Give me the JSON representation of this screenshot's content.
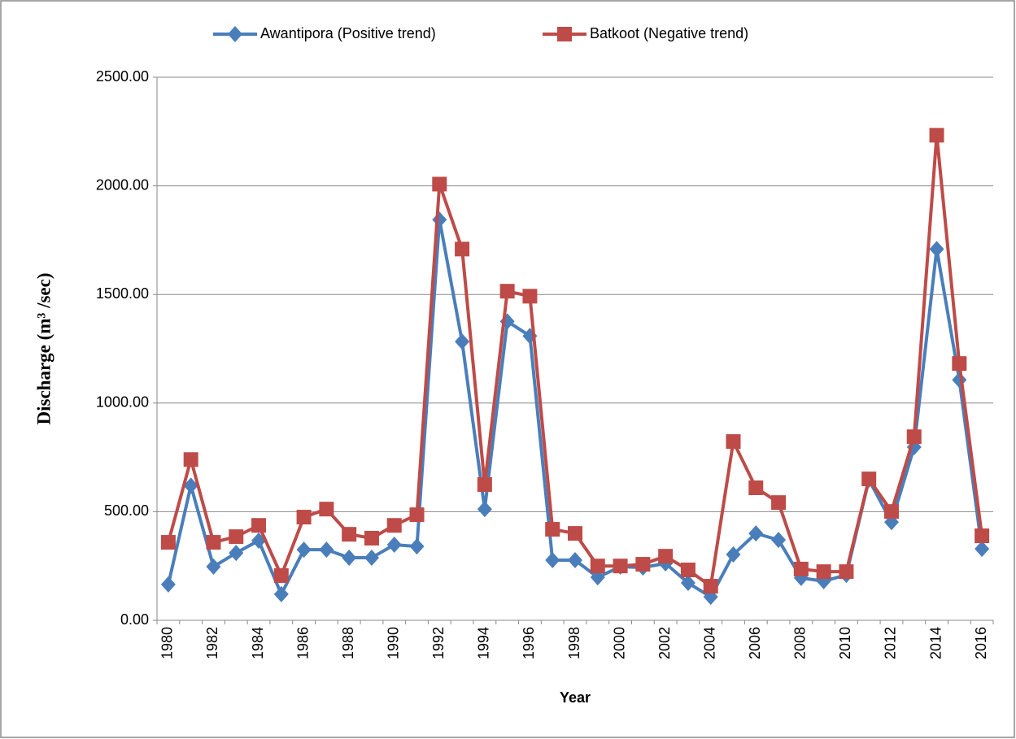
{
  "chart_data": {
    "type": "line",
    "x_label": "Year",
    "y_label": "Discharge (m³ /sec)",
    "categories": [
      "1980",
      null,
      "1982",
      null,
      "1984",
      null,
      "1986",
      null,
      "1988",
      null,
      "1990",
      null,
      "1992",
      null,
      "1994",
      null,
      "1996",
      null,
      "1998",
      null,
      "2000",
      null,
      "2002",
      null,
      "2004",
      null,
      "2006",
      null,
      "2008",
      null,
      "2010",
      null,
      "2012",
      null,
      "2014",
      null,
      "2016"
    ],
    "series": [
      {
        "name": "Awantipora (Positive trend)",
        "color": "#4a7ebb",
        "marker": "diamond",
        "values": [
          165,
          620,
          247,
          310,
          367,
          120,
          325,
          325,
          288,
          288,
          348,
          340,
          1844,
          1283,
          512,
          1376,
          1309,
          277,
          277,
          198,
          247,
          243,
          262,
          172,
          108,
          303,
          400,
          370,
          195,
          180,
          209,
          647,
          452,
          797,
          1709,
          1107,
          329
        ]
      },
      {
        "name": "Batkoot (Negative trend)",
        "color": "#be4b48",
        "marker": "square",
        "values": [
          359,
          740,
          359,
          385,
          437,
          206,
          475,
          512,
          396,
          378,
          437,
          486,
          2008,
          1709,
          625,
          1515,
          1492,
          419,
          400,
          250,
          250,
          258,
          295,
          232,
          157,
          823,
          610,
          542,
          236,
          224,
          224,
          651,
          501,
          845,
          2233,
          1182,
          389
        ]
      }
    ],
    "ylim": [
      0,
      2500
    ],
    "yticks": [
      {
        "value": 0,
        "label": "0.00"
      },
      {
        "value": 500,
        "label": "500.00"
      },
      {
        "value": 1000,
        "label": "1000.00"
      },
      {
        "value": 1500,
        "label": "1500.00"
      },
      {
        "value": 2000,
        "label": "2000.00"
      },
      {
        "value": 2500,
        "label": "2500.00"
      }
    ],
    "grid": true,
    "legend": "top"
  }
}
